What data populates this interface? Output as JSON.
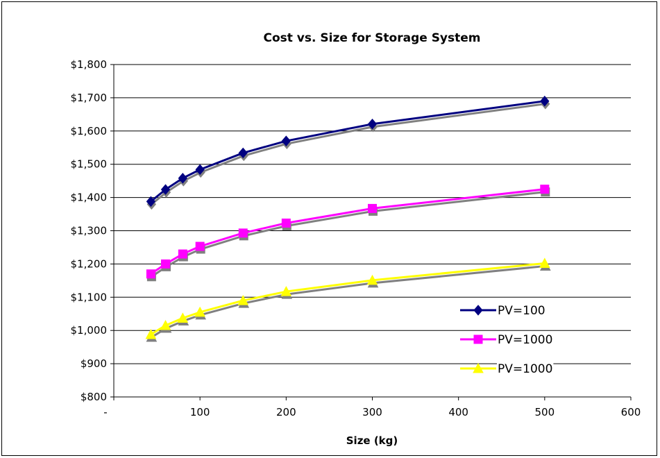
{
  "chart_data": {
    "type": "line",
    "title": "Cost vs. Size for Storage System",
    "xlabel": "Size (kg)",
    "ylabel": "",
    "xlim": [
      0,
      600
    ],
    "ylim": [
      800,
      1800
    ],
    "x_ticks": [
      0,
      100,
      200,
      300,
      400,
      500,
      600
    ],
    "x_tick_labels": [
      "-",
      "100",
      "200",
      "300",
      "400",
      "500",
      "600"
    ],
    "y_ticks": [
      800,
      900,
      1000,
      1100,
      1200,
      1300,
      1400,
      1500,
      1600,
      1700,
      1800
    ],
    "y_tick_labels": [
      "$800",
      "$900",
      "$1,000",
      "$1,100",
      "$1,200",
      "$1,300",
      "$1,400",
      "$1,500",
      "$1,600",
      "$1,700",
      "$1,800"
    ],
    "grid": "horizontal",
    "legend_position": "right",
    "x": [
      43,
      60,
      80,
      100,
      150,
      200,
      300,
      500
    ],
    "series": [
      {
        "name": "PV=100",
        "color": "#000080",
        "marker": "diamond",
        "values": [
          1388,
          1424,
          1458,
          1484,
          1534,
          1570,
          1621,
          1690
        ]
      },
      {
        "name": "PV=1000",
        "color": "#FF00FF",
        "marker": "square",
        "values": [
          1170,
          1200,
          1230,
          1253,
          1293,
          1323,
          1367,
          1425
        ]
      },
      {
        "name": "PV=1000",
        "color": "#FFFF00",
        "marker": "triangle",
        "values": [
          988,
          1015,
          1037,
          1055,
          1090,
          1117,
          1151,
          1202
        ]
      }
    ]
  }
}
